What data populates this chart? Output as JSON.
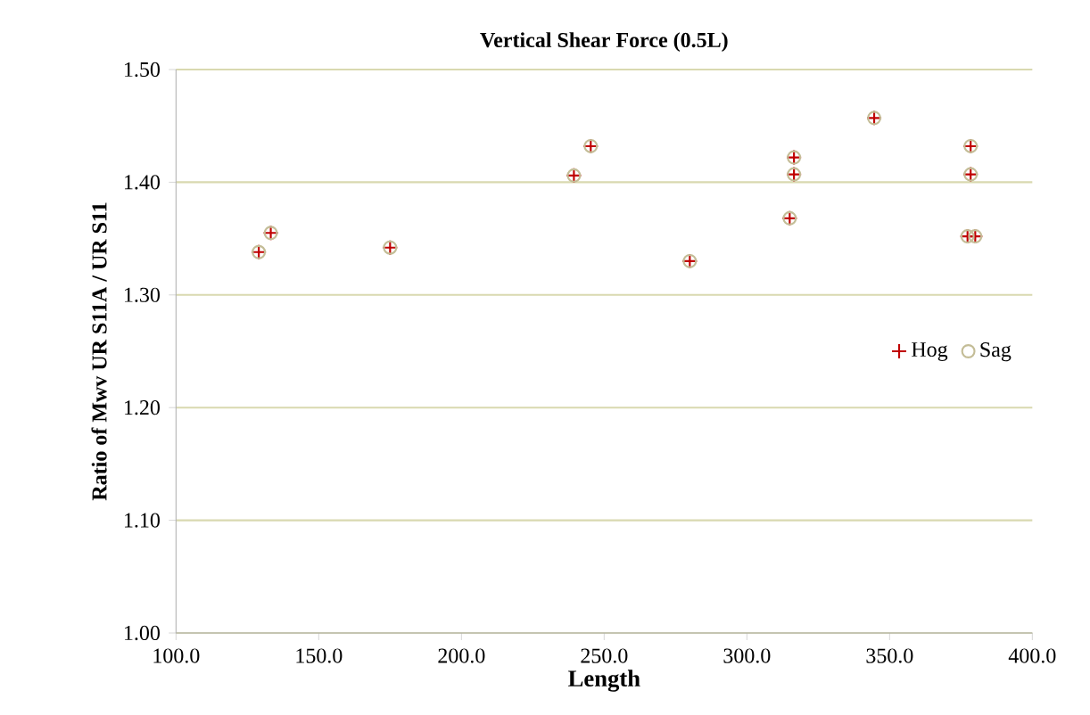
{
  "chart_data": {
    "type": "scatter",
    "title": "Vertical  Shear Force  (0.5L)",
    "xlabel": "Length",
    "ylabel": "Ratio of Mwv UR S11A / UR S11",
    "x": [
      129,
      133.2,
      175,
      239.4,
      245.3,
      280,
      315,
      316.5,
      316.5,
      344.6,
      378.4,
      378.4,
      377.3,
      380
    ],
    "series": [
      {
        "name": "Hog",
        "color": "#c00000",
        "marker": "cross",
        "values": [
          1.338,
          1.355,
          1.342,
          1.406,
          1.432,
          1.33,
          1.368,
          1.407,
          1.422,
          1.457,
          1.432,
          1.407,
          1.352,
          1.352
        ]
      },
      {
        "name": "Sag",
        "color": "#c4bd97",
        "marker": "circle",
        "values": [
          1.338,
          1.355,
          1.342,
          1.406,
          1.432,
          1.33,
          1.368,
          1.407,
          1.422,
          1.457,
          1.432,
          1.407,
          1.352,
          1.352
        ]
      }
    ],
    "xlim": [
      100,
      400
    ],
    "xticks": [
      {
        "value": 100,
        "label": "100.0"
      },
      {
        "value": 150,
        "label": "150.0"
      },
      {
        "value": 200,
        "label": "200.0"
      },
      {
        "value": 250,
        "label": "250.0"
      },
      {
        "value": 300,
        "label": "300.0"
      },
      {
        "value": 350,
        "label": "350.0"
      },
      {
        "value": 400,
        "label": "400.0"
      }
    ],
    "ylim": [
      1.0,
      1.5
    ],
    "yticks": [
      {
        "value": 1.0,
        "label": "1.00"
      },
      {
        "value": 1.1,
        "label": "1.10"
      },
      {
        "value": 1.2,
        "label": "1.20"
      },
      {
        "value": 1.3,
        "label": "1.30"
      },
      {
        "value": 1.4,
        "label": "1.40"
      },
      {
        "value": 1.5,
        "label": "1.50"
      }
    ],
    "grid": "y",
    "legend": "right"
  }
}
